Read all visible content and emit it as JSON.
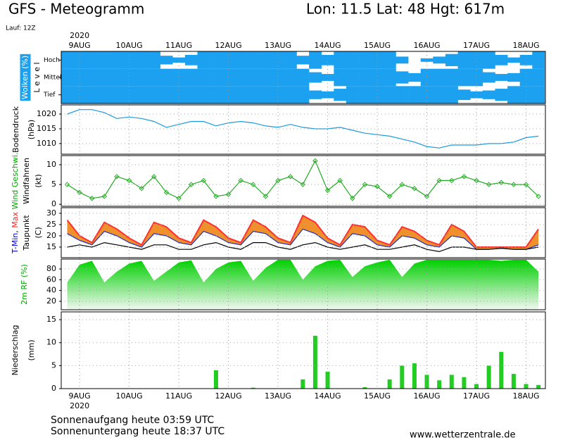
{
  "header": {
    "title": "GFS - Meteogramm",
    "location": "Lon: 11.5 Lat: 48 Hgt: 617m",
    "run": "Lauf: 12Z"
  },
  "footer": {
    "sunrise": "Sonnenaufgang heute 03:59 UTC",
    "sunset": "Sonnenuntergang heute 18:37 UTC",
    "source": "www.wetterzentrale.de"
  },
  "chart_data": {
    "type": "meteogram",
    "year": "2020",
    "xlim": [
      -0.37,
      9.39
    ],
    "xticks": [
      {
        "value": 0,
        "label": "9AUG"
      },
      {
        "value": 1,
        "label": "10AUG"
      },
      {
        "value": 2,
        "label": "11AUG"
      },
      {
        "value": 3,
        "label": "12AUG"
      },
      {
        "value": 4,
        "label": "13AUG"
      },
      {
        "value": 5,
        "label": "14AUG"
      },
      {
        "value": 6,
        "label": "15AUG"
      },
      {
        "value": 7,
        "label": "16AUG"
      },
      {
        "value": 8,
        "label": "17AUG"
      },
      {
        "value": 9,
        "label": "18AUG"
      }
    ],
    "x": [
      -0.25,
      0,
      0.25,
      0.5,
      0.75,
      1,
      1.25,
      1.5,
      1.75,
      2,
      2.25,
      2.5,
      2.75,
      3,
      3.25,
      3.5,
      3.75,
      4,
      4.25,
      4.5,
      4.75,
      5,
      5.25,
      5.5,
      5.75,
      6,
      6.25,
      6.5,
      6.75,
      7,
      7.25,
      7.5,
      7.75,
      8,
      8.25,
      8.5,
      8.75,
      9,
      9.25
    ],
    "panels": [
      {
        "type": "cloud",
        "ylabel": [
          [
            {
              "text": "Wolken (%)",
              "color": "#ffffff",
              "background": "#1ba1f0"
            }
          ],
          [
            {
              "text": "L e v e l"
            }
          ]
        ],
        "series": [
          {
            "name": "Hoch",
            "color": "#1ba1f0",
            "values": [
              100,
              100,
              100,
              100,
              100,
              100,
              100,
              100,
              50,
              30,
              60,
              100,
              100,
              100,
              100,
              100,
              100,
              100,
              100,
              50,
              100,
              60,
              100,
              100,
              100,
              100,
              100,
              40,
              0,
              20,
              40,
              70,
              100,
              100,
              100,
              60,
              30,
              60,
              100
            ]
          },
          {
            "name": "Mittel",
            "color": "#1ba1f0",
            "values": [
              100,
              100,
              100,
              100,
              100,
              100,
              100,
              100,
              100,
              100,
              100,
              100,
              100,
              100,
              100,
              100,
              100,
              100,
              100,
              100,
              60,
              40,
              100,
              100,
              100,
              100,
              100,
              70,
              50,
              100,
              100,
              100,
              100,
              100,
              60,
              40,
              50,
              100,
              100
            ]
          },
          {
            "name": "Tief",
            "color": "#1ba1f0",
            "values": [
              100,
              100,
              100,
              100,
              100,
              100,
              100,
              100,
              100,
              100,
              100,
              100,
              100,
              100,
              100,
              100,
              100,
              100,
              100,
              100,
              50,
              40,
              70,
              100,
              100,
              100,
              100,
              100,
              100,
              100,
              100,
              100,
              60,
              40,
              50,
              70,
              100,
              100,
              100
            ]
          }
        ]
      },
      {
        "type": "line",
        "ylabel": [
          [
            {
              "text": "Bodendruck"
            }
          ],
          [
            {
              "text": "(hPa)"
            }
          ]
        ],
        "ylim": [
          1006.4,
          1023.1
        ],
        "yticks": [
          1010,
          1015,
          1020
        ],
        "grid": true,
        "series": [
          {
            "color": "#1a9ae0",
            "values": [
              1020,
              1021.5,
              1021.5,
              1020.5,
              1018.5,
              1019,
              1018.5,
              1017.5,
              1015.5,
              1016.5,
              1017.5,
              1017.5,
              1016,
              1017,
              1017.5,
              1017,
              1016,
              1015.5,
              1016.5,
              1015.5,
              1015,
              1015,
              1015.5,
              1014.5,
              1013.5,
              1013,
              1012.5,
              1011.5,
              1010.5,
              1009,
              1008.5,
              1009.5,
              1009.5,
              1009.5,
              1010,
              1010,
              1010.5,
              1012,
              1012.5
            ]
          }
        ]
      },
      {
        "type": "line",
        "markers": true,
        "ylabel": [
          [
            {
              "text": "Wind Geschwi.",
              "color": "#00aa00"
            }
          ],
          [
            {
              "text": "Windfahnen"
            }
          ],
          [
            {
              "text": "(kt)"
            }
          ]
        ],
        "ylim": [
          -0.5,
          12.3
        ],
        "yticks": [
          0,
          5,
          10
        ],
        "grid": true,
        "series": [
          {
            "color": "#22aa22",
            "values": [
              5,
              3,
              1.5,
              2,
              7,
              6,
              4,
              7,
              3,
              1.5,
              5,
              6,
              2,
              2.5,
              6,
              5,
              2,
              6,
              7,
              5,
              11,
              3.5,
              6,
              1.5,
              5,
              4.5,
              2,
              5,
              4,
              2,
              6,
              6,
              7,
              6,
              5,
              5.5,
              5,
              5,
              2
            ]
          }
        ]
      },
      {
        "type": "band",
        "band_color": "#f0902c",
        "ylabel": [
          [
            {
              "text": "T-Min",
              "color": "#0000cc"
            },
            {
              "text": ", "
            },
            {
              "text": "Max",
              "color": "#ff2020"
            }
          ],
          [
            {
              "text": "Taupunkt"
            }
          ],
          [
            {
              "text": "(C)"
            }
          ]
        ],
        "ylim": [
          10.3,
          32.5
        ],
        "yticks": [
          15,
          20,
          25,
          30
        ],
        "grid": true,
        "series": [
          {
            "color": "#2030c0",
            "values": [
              21,
              18,
              16,
              22,
              20,
              17,
              15,
              21,
              20,
              17,
              16,
              22,
              20,
              17,
              16,
              22,
              21,
              17,
              16,
              23,
              21,
              17,
              15,
              21,
              20,
              16,
              15,
              20,
              19,
              16,
              15,
              20,
              19,
              14,
              14,
              14.5,
              14,
              14,
              16
            ]
          },
          {
            "color": "#ff3030",
            "values": [
              27,
              20,
              17,
              26,
              23,
              19,
              16,
              26,
              24,
              19,
              17,
              27,
              24,
              19,
              17,
              27,
              24,
              19,
              17,
              29,
              26,
              19,
              16,
              25,
              24,
              18,
              16,
              24,
              22,
              18,
              16,
              25,
              22,
              15,
              15,
              15,
              15,
              15,
              23
            ]
          },
          {
            "color": "#000000",
            "values": [
              15,
              16,
              15,
              17,
              16,
              15,
              14,
              16,
              16,
              14,
              14,
              16,
              17,
              15,
              14,
              17,
              17,
              15,
              14,
              16,
              17,
              15,
              14,
              15,
              16,
              14,
              14,
              15,
              16,
              14,
              13,
              15,
              15,
              14,
              14,
              14.5,
              14,
              14,
              15
            ]
          }
        ]
      },
      {
        "type": "area",
        "gradient": [
          "#00d000",
          "#f2f7f2"
        ],
        "ylabel": [
          [
            {
              "text": "2m RF (%)",
              "color": "#00aa00"
            }
          ]
        ],
        "ylim": [
          4.3,
          98.3
        ],
        "yticks": [
          20,
          40,
          60,
          80
        ],
        "grid": true,
        "series": [
          {
            "color": "#00d000",
            "values": [
              55,
              88,
              95,
              55,
              75,
              90,
              95,
              58,
              75,
              92,
              96,
              55,
              80,
              92,
              95,
              58,
              82,
              97,
              97,
              60,
              85,
              95,
              97,
              65,
              85,
              92,
              97,
              65,
              90,
              97,
              97,
              97,
              97,
              97,
              97,
              95,
              97,
              97,
              75
            ]
          }
        ]
      },
      {
        "type": "bar",
        "ylabel": [
          [
            {
              "text": "Niederschlag"
            }
          ],
          [
            {
              "text": "(mm)"
            }
          ]
        ],
        "ylim": [
          0,
          16.7
        ],
        "yticks": [
          0,
          5,
          10,
          15
        ],
        "grid": true,
        "series": [
          {
            "color": "#22cc22",
            "values": [
              0,
              0,
              0,
              0,
              0,
              0,
              0,
              0,
              0,
              0,
              0,
              0,
              4,
              0,
              0,
              0.2,
              0,
              0,
              0,
              2,
              11.5,
              3.7,
              0,
              0,
              0.3,
              0,
              2,
              5,
              5.5,
              3,
              1.8,
              3,
              2.5,
              1,
              5,
              8,
              3.2,
              1,
              0.8
            ]
          }
        ]
      }
    ]
  }
}
